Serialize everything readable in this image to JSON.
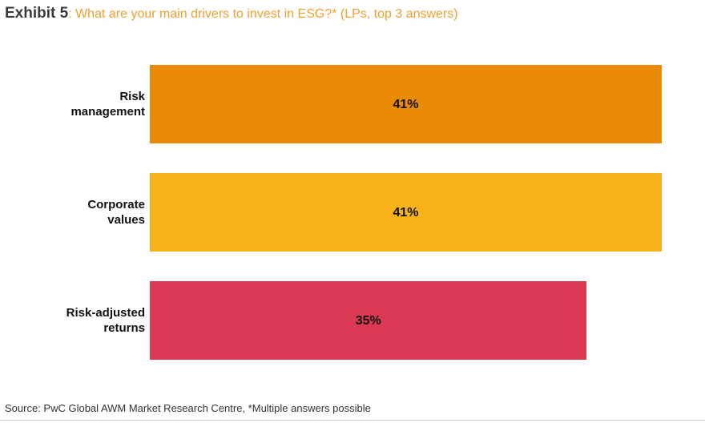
{
  "chart_data": {
    "type": "bar",
    "orientation": "horizontal",
    "title": "Exhibit 5",
    "subtitle": ": What are your main drivers to invest in ESG?* (LPs, top 3 answers)",
    "categories": [
      "Risk management",
      "Corporate values",
      "Risk-adjusted returns"
    ],
    "values": [
      41,
      41,
      35
    ],
    "value_labels": [
      "41%",
      "41%",
      "35%"
    ],
    "colors": [
      "#e98b06",
      "#f8b31a",
      "#d93952"
    ],
    "xlim": [
      0,
      41
    ],
    "source": "Source: PwC Global AWM Market Research Centre, *Multiple answers possible"
  }
}
